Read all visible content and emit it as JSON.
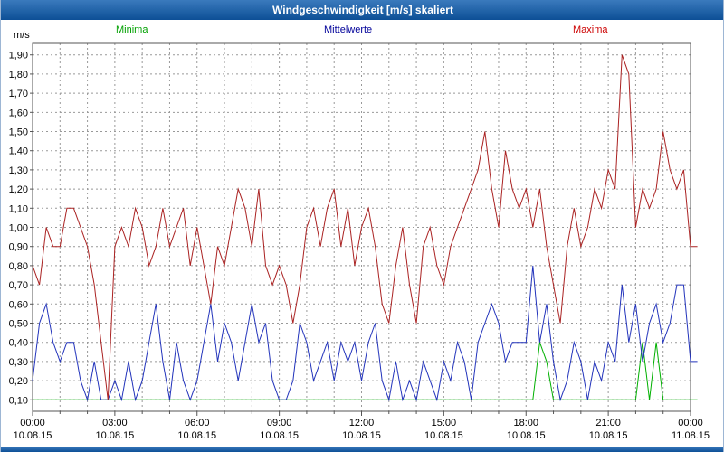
{
  "window": {
    "title": "Windgeschwindigkeit [m/s] skaliert"
  },
  "chart_data": {
    "type": "line",
    "title": "Windgeschwindigkeit [m/s] skaliert",
    "ylabel": "m/s",
    "ylim": [
      0.04,
      1.96
    ],
    "grid": "dashed",
    "grid_color": "#999999",
    "frame_color": "#555555",
    "x_hours": 24,
    "sample_interval_minutes": 15,
    "y_tick_values": [
      0.1,
      0.2,
      0.3,
      0.4,
      0.5,
      0.6,
      0.7,
      0.8,
      0.9,
      1.0,
      1.1,
      1.2,
      1.3,
      1.4,
      1.5,
      1.6,
      1.7,
      1.8,
      1.9
    ],
    "y_tick_labels": [
      "0,10",
      "0,20",
      "0,30",
      "0,40",
      "0,50",
      "0,60",
      "0,70",
      "0,80",
      "0,90",
      "1,00",
      "1,10",
      "1,20",
      "1,30",
      "1,40",
      "1,50",
      "1,60",
      "1,70",
      "1,80",
      "1,90"
    ],
    "x_ticks": [
      {
        "hour": 0,
        "time": "00:00",
        "date": "10.08.15"
      },
      {
        "hour": 3,
        "time": "03:00",
        "date": "10.08.15"
      },
      {
        "hour": 6,
        "time": "06:00",
        "date": "10.08.15"
      },
      {
        "hour": 9,
        "time": "09:00",
        "date": "10.08.15"
      },
      {
        "hour": 12,
        "time": "12:00",
        "date": "10.08.15"
      },
      {
        "hour": 15,
        "time": "15:00",
        "date": "10.08.15"
      },
      {
        "hour": 18,
        "time": "18:00",
        "date": "10.08.15"
      },
      {
        "hour": 21,
        "time": "21:00",
        "date": "10.08.15"
      },
      {
        "hour": 24,
        "time": "00:00",
        "date": "11.08.15"
      }
    ],
    "series": [
      {
        "name": "Minima",
        "color": "#00b000",
        "values": [
          0.1,
          0.1,
          0.1,
          0.1,
          0.1,
          0.1,
          0.1,
          0.1,
          0.1,
          0.1,
          0.1,
          0.1,
          0.1,
          0.1,
          0.1,
          0.1,
          0.1,
          0.1,
          0.1,
          0.1,
          0.1,
          0.1,
          0.1,
          0.1,
          0.1,
          0.1,
          0.1,
          0.1,
          0.1,
          0.1,
          0.1,
          0.1,
          0.1,
          0.1,
          0.1,
          0.1,
          0.1,
          0.1,
          0.1,
          0.1,
          0.1,
          0.1,
          0.1,
          0.1,
          0.1,
          0.1,
          0.1,
          0.1,
          0.1,
          0.1,
          0.1,
          0.1,
          0.1,
          0.1,
          0.1,
          0.1,
          0.1,
          0.1,
          0.1,
          0.1,
          0.1,
          0.1,
          0.1,
          0.1,
          0.1,
          0.1,
          0.1,
          0.1,
          0.1,
          0.1,
          0.1,
          0.1,
          0.1,
          0.1,
          0.4,
          0.3,
          0.1,
          0.1,
          0.1,
          0.1,
          0.1,
          0.1,
          0.1,
          0.1,
          0.1,
          0.1,
          0.1,
          0.1,
          0.1,
          0.4,
          0.1,
          0.4,
          0.1,
          0.1,
          0.1,
          0.1,
          0.1,
          0.1
        ]
      },
      {
        "name": "Mittelwerte",
        "color": "#2233bb",
        "values": [
          0.2,
          0.5,
          0.6,
          0.4,
          0.3,
          0.4,
          0.4,
          0.2,
          0.1,
          0.3,
          0.1,
          0.1,
          0.2,
          0.1,
          0.3,
          0.1,
          0.2,
          0.4,
          0.6,
          0.3,
          0.1,
          0.4,
          0.2,
          0.1,
          0.2,
          0.4,
          0.6,
          0.3,
          0.5,
          0.4,
          0.2,
          0.4,
          0.6,
          0.4,
          0.5,
          0.2,
          0.1,
          0.1,
          0.2,
          0.5,
          0.4,
          0.2,
          0.3,
          0.4,
          0.2,
          0.4,
          0.3,
          0.4,
          0.2,
          0.4,
          0.5,
          0.2,
          0.1,
          0.3,
          0.1,
          0.2,
          0.1,
          0.3,
          0.2,
          0.1,
          0.3,
          0.2,
          0.4,
          0.3,
          0.1,
          0.4,
          0.5,
          0.6,
          0.5,
          0.3,
          0.4,
          0.4,
          0.4,
          0.8,
          0.4,
          0.6,
          0.3,
          0.1,
          0.2,
          0.4,
          0.3,
          0.1,
          0.3,
          0.2,
          0.4,
          0.3,
          0.7,
          0.4,
          0.6,
          0.3,
          0.5,
          0.6,
          0.4,
          0.5,
          0.7,
          0.7,
          0.3,
          0.3
        ]
      },
      {
        "name": "Maxima",
        "color": "#aa2222",
        "values": [
          0.8,
          0.7,
          1.0,
          0.9,
          0.9,
          1.1,
          1.1,
          1.0,
          0.9,
          0.7,
          0.4,
          0.1,
          0.9,
          1.0,
          0.9,
          1.1,
          1.0,
          0.8,
          0.9,
          1.1,
          0.9,
          1.0,
          1.1,
          0.8,
          1.0,
          0.8,
          0.6,
          0.9,
          0.8,
          1.0,
          1.2,
          1.1,
          0.9,
          1.2,
          0.8,
          0.7,
          0.8,
          0.7,
          0.5,
          0.7,
          1.0,
          1.1,
          0.9,
          1.1,
          1.2,
          0.9,
          1.1,
          0.8,
          1.0,
          1.1,
          0.9,
          0.6,
          0.5,
          0.8,
          1.0,
          0.7,
          0.5,
          0.9,
          1.0,
          0.8,
          0.7,
          0.9,
          1.0,
          1.1,
          1.2,
          1.3,
          1.5,
          1.2,
          1.0,
          1.4,
          1.2,
          1.1,
          1.2,
          1.0,
          1.2,
          0.9,
          0.7,
          0.5,
          0.9,
          1.1,
          0.9,
          1.0,
          1.2,
          1.1,
          1.3,
          1.2,
          1.9,
          1.8,
          1.0,
          1.2,
          1.1,
          1.2,
          1.5,
          1.3,
          1.2,
          1.3,
          0.9,
          0.9
        ]
      }
    ],
    "legend_text_colors": {
      "Minima": "#00a000",
      "Mittelwerte": "#000099",
      "Maxima": "#cc0000"
    }
  }
}
